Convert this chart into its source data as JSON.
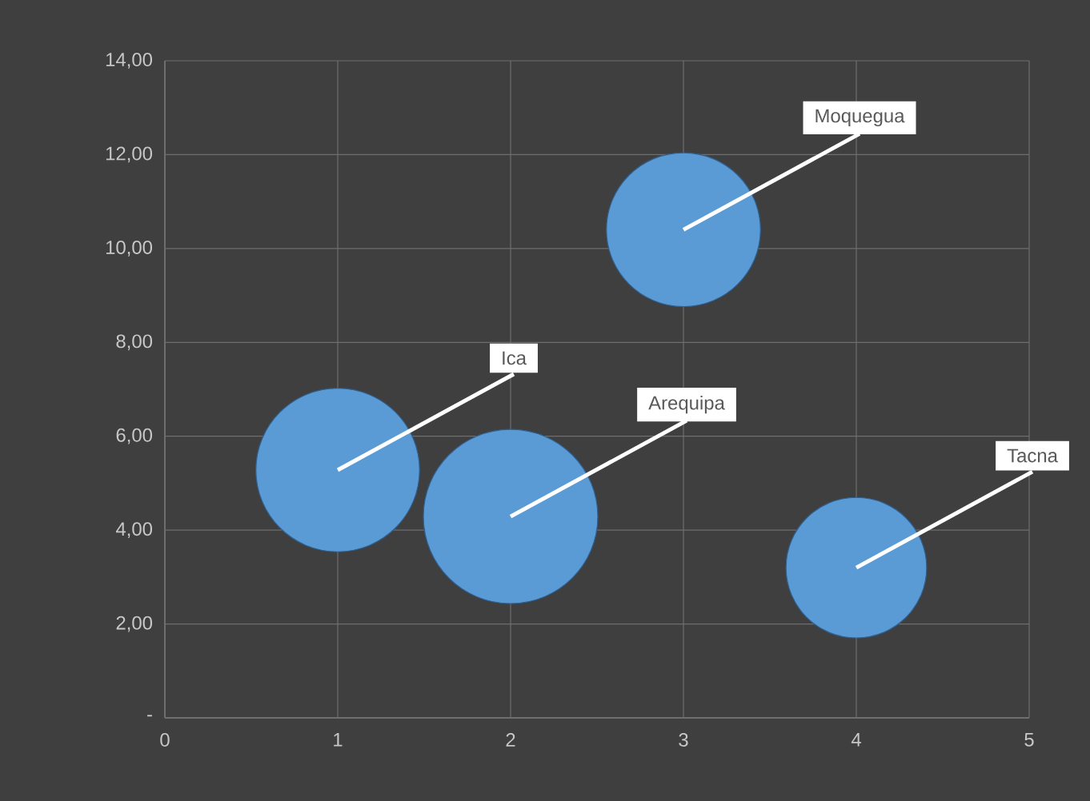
{
  "chart_data": {
    "type": "bubble",
    "x": [
      1,
      2,
      3,
      4
    ],
    "values": [
      5.28,
      4.29,
      10.4,
      3.2
    ],
    "sizes": [
      0.88,
      1,
      0.78,
      0.65
    ],
    "color": "#5b9bd5",
    "xlim": [
      0,
      5
    ],
    "xticks": [
      0,
      1,
      2,
      3,
      4,
      5
    ],
    "ylim": [
      0,
      14
    ],
    "yticks": [
      {
        "value": 0,
        "label": "-"
      },
      {
        "value": 2,
        "label": "2,00"
      },
      {
        "value": 4,
        "label": "4,00"
      },
      {
        "value": 6,
        "label": "6,00"
      },
      {
        "value": 8,
        "label": "8,00"
      },
      {
        "value": 10,
        "label": "10,00"
      },
      {
        "value": 12,
        "label": "12,00"
      },
      {
        "value": 14,
        "label": "14,00"
      }
    ],
    "grid": true,
    "annotations": [
      {
        "text": "Ica",
        "x": 1,
        "y": 5.28
      },
      {
        "text": "Arequipa",
        "x": 2,
        "y": 4.29
      },
      {
        "text": "Moquegua",
        "x": 3,
        "y": 10.4
      },
      {
        "text": "Tacna",
        "x": 4,
        "y": 3.2
      }
    ]
  }
}
